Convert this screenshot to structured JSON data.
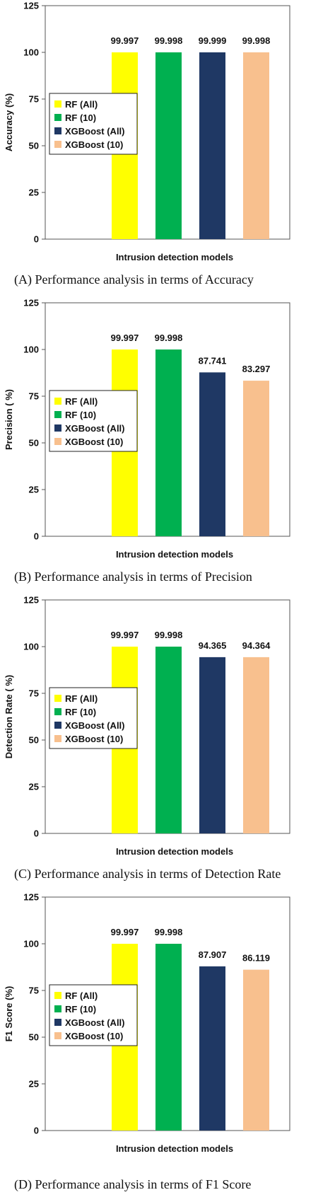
{
  "colors": {
    "rf_all": "#ffff00",
    "rf_10": "#00b050",
    "xgb_all": "#1f3864",
    "xgb_10": "#f8c08e"
  },
  "panels": [
    {
      "caption": "(A) Performance analysis in terms of Accuracy"
    },
    {
      "caption": "(B) Performance analysis in terms of Precision"
    },
    {
      "caption": "(C) Performance analysis in terms of Detection Rate"
    },
    {
      "caption": "(D) Performance analysis in terms of F1 Score"
    }
  ],
  "chart_data": [
    {
      "type": "bar",
      "ylabel": "Accuracy (%)",
      "xlabel": "Intrusion detection models",
      "ylim": [
        0,
        125
      ],
      "yticks": [
        0,
        25,
        50,
        75,
        100,
        125
      ],
      "series": [
        {
          "name": "RF (All)",
          "value": 99.997,
          "label": "99.997"
        },
        {
          "name": "RF (10)",
          "value": 99.998,
          "label": "99.998"
        },
        {
          "name": "XGBoost (All)",
          "value": 99.999,
          "label": "99.999"
        },
        {
          "name": "XGBoost (10)",
          "value": 99.998,
          "label": "99.998"
        }
      ],
      "legend": "left"
    },
    {
      "type": "bar",
      "ylabel": "Precision ( %)",
      "xlabel": "Intrusion detection models",
      "ylim": [
        0,
        125
      ],
      "yticks": [
        0,
        25,
        50,
        75,
        100,
        125
      ],
      "series": [
        {
          "name": "RF (All)",
          "value": 99.997,
          "label": "99.997"
        },
        {
          "name": "RF (10)",
          "value": 99.998,
          "label": "99.998"
        },
        {
          "name": "XGBoost (All)",
          "value": 87.741,
          "label": "87.741"
        },
        {
          "name": "XGBoost (10)",
          "value": 83.297,
          "label": "83.297"
        }
      ],
      "legend": "left"
    },
    {
      "type": "bar",
      "ylabel": "Detection Rate ( %)",
      "xlabel": "Intrusion detection models",
      "ylim": [
        0,
        125
      ],
      "yticks": [
        0,
        25,
        50,
        75,
        100,
        125
      ],
      "series": [
        {
          "name": "RF (All)",
          "value": 99.997,
          "label": "99.997"
        },
        {
          "name": "RF (10)",
          "value": 99.998,
          "label": "99.998"
        },
        {
          "name": "XGBoost (All)",
          "value": 94.365,
          "label": "94.365"
        },
        {
          "name": "XGBoost (10)",
          "value": 94.364,
          "label": "94.364"
        }
      ],
      "legend": "left"
    },
    {
      "type": "bar",
      "ylabel": "F1 Score (%)",
      "xlabel": "Intrusion detection models",
      "ylim": [
        0,
        125
      ],
      "yticks": [
        0,
        25,
        50,
        75,
        100,
        125
      ],
      "series": [
        {
          "name": "RF (All)",
          "value": 99.997,
          "label": "99.997"
        },
        {
          "name": "RF (10)",
          "value": 99.998,
          "label": "99.998"
        },
        {
          "name": "XGBoost (All)",
          "value": 87.907,
          "label": "87.907"
        },
        {
          "name": "XGBoost (10)",
          "value": 86.119,
          "label": "86.119"
        }
      ],
      "legend": "left"
    }
  ]
}
